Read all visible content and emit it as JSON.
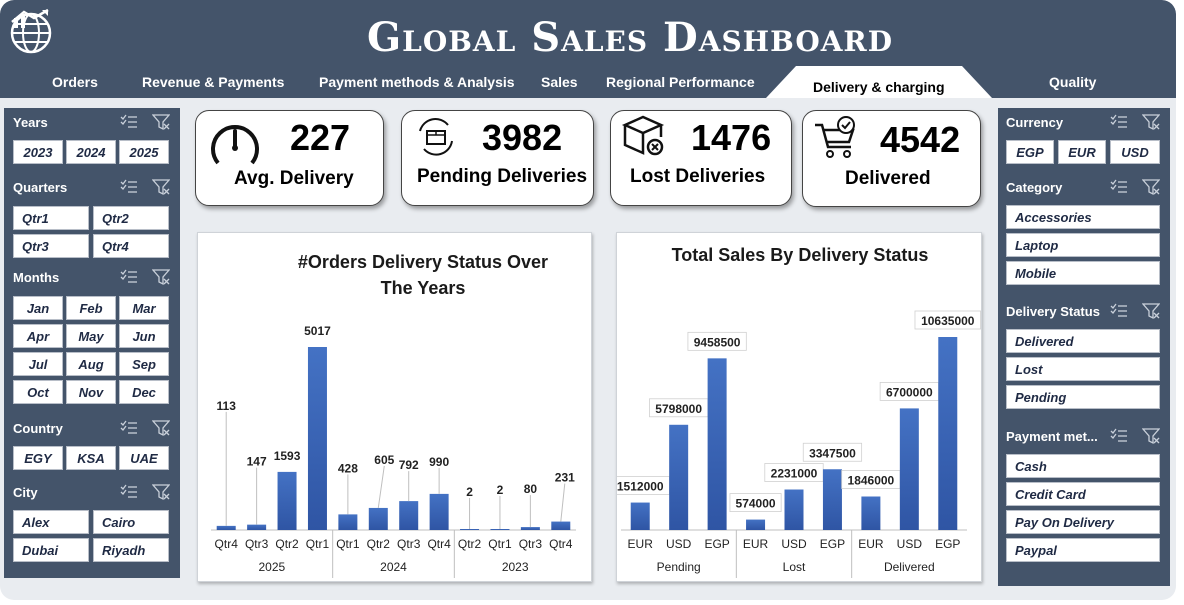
{
  "header": {
    "title": "Global Sales Dashboard",
    "nav": [
      "Orders",
      "Revenue & Payments",
      "Payment methods & Analysis",
      "Sales",
      "Regional Performance",
      "Delivery & charging",
      "Quality"
    ],
    "active_tab": "Delivery & charging"
  },
  "filters": {
    "years": {
      "title": "Years",
      "items": [
        "2023",
        "2024",
        "2025"
      ]
    },
    "quarters": {
      "title": "Quarters",
      "items": [
        "Qtr1",
        "Qtr2",
        "Qtr3",
        "Qtr4"
      ]
    },
    "months": {
      "title": "Months",
      "items": [
        "Jan",
        "Feb",
        "Mar",
        "Apr",
        "May",
        "Jun",
        "Jul",
        "Aug",
        "Sep",
        "Oct",
        "Nov",
        "Dec"
      ]
    },
    "country": {
      "title": "Country",
      "items": [
        "EGY",
        "KSA",
        "UAE"
      ]
    },
    "city": {
      "title": "City",
      "items": [
        "Alex",
        "Cairo",
        "Dubai",
        "Riyadh"
      ]
    },
    "currency": {
      "title": "Currency",
      "items": [
        "EGP",
        "EUR",
        "USD"
      ]
    },
    "category": {
      "title": "Category",
      "items": [
        "Accessories",
        "Laptop",
        "Mobile"
      ]
    },
    "delivery_status": {
      "title": "Delivery Status",
      "items": [
        "Delivered",
        "Lost",
        "Pending"
      ]
    },
    "payment_method": {
      "title": "Payment met...",
      "items": [
        "Cash",
        "Credit Card",
        "Pay On Delivery",
        "Paypal"
      ]
    }
  },
  "kpis": [
    {
      "value": "227",
      "label": "Avg. Delivery",
      "icon": "speedometer-icon"
    },
    {
      "value": "3982",
      "label": "Pending Deliveries",
      "icon": "package-rotate-icon"
    },
    {
      "value": "1476",
      "label": "Lost Deliveries",
      "icon": "box-cancel-icon"
    },
    {
      "value": "4542",
      "label": "Delivered",
      "icon": "cart-check-icon"
    }
  ],
  "colors": {
    "header": "#44546a",
    "bar_top": "#4472c4",
    "bar_bottom": "#2f55a4"
  },
  "chart_data": [
    {
      "type": "bar",
      "title": "#Orders Delivery Status Over The Years",
      "groups": [
        {
          "name": "2025",
          "categories": [
            "Qtr4",
            "Qtr3",
            "Qtr2",
            "Qtr1"
          ],
          "values": [
            113,
            147,
            1593,
            5017
          ]
        },
        {
          "name": "2024",
          "categories": [
            "Qtr1",
            "Qtr2",
            "Qtr3",
            "Qtr4"
          ],
          "values": [
            428,
            605,
            792,
            990
          ]
        },
        {
          "name": "2023",
          "categories": [
            "Qtr2",
            "Qtr1",
            "Qtr3",
            "Qtr4"
          ],
          "values": [
            2,
            2,
            80,
            231
          ]
        }
      ],
      "ylim": [
        0,
        5017
      ],
      "grid": false,
      "data_labels": true
    },
    {
      "type": "bar",
      "title": "Total Sales By Delivery Status",
      "groups": [
        {
          "name": "Pending",
          "categories": [
            "EUR",
            "USD",
            "EGP"
          ],
          "values": [
            1512000,
            5798000,
            9458500
          ]
        },
        {
          "name": "Lost",
          "categories": [
            "EUR",
            "USD",
            "EGP"
          ],
          "values": [
            574000,
            2231000,
            3347500
          ]
        },
        {
          "name": "Delivered",
          "categories": [
            "EUR",
            "USD",
            "EGP"
          ],
          "values": [
            1846000,
            6700000,
            10635000
          ]
        }
      ],
      "ylim": [
        0,
        10635000
      ],
      "grid": false,
      "data_labels": true
    }
  ]
}
